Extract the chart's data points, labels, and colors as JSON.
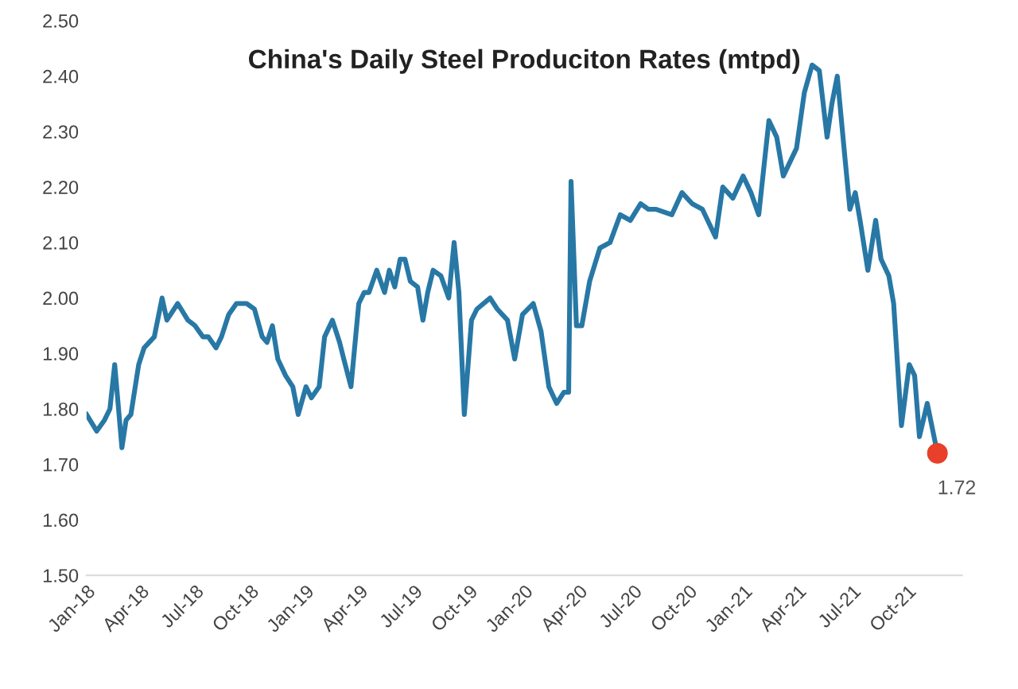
{
  "chart_data": {
    "type": "line",
    "title": "China's Daily Steel Produciton Rates (mtpd)",
    "xlim": [
      "2018-01-01",
      "2021-12-31"
    ],
    "xticks": [
      {
        "value": "2018-01-01",
        "label": "Jan-18"
      },
      {
        "value": "2018-04-01",
        "label": "Apr-18"
      },
      {
        "value": "2018-07-01",
        "label": "Jul-18"
      },
      {
        "value": "2018-10-01",
        "label": "Oct-18"
      },
      {
        "value": "2019-01-01",
        "label": "Jan-19"
      },
      {
        "value": "2019-04-01",
        "label": "Apr-19"
      },
      {
        "value": "2019-07-01",
        "label": "Jul-19"
      },
      {
        "value": "2019-10-01",
        "label": "Oct-19"
      },
      {
        "value": "2020-01-01",
        "label": "Jan-20"
      },
      {
        "value": "2020-04-01",
        "label": "Apr-20"
      },
      {
        "value": "2020-07-01",
        "label": "Jul-20"
      },
      {
        "value": "2020-10-01",
        "label": "Oct-20"
      },
      {
        "value": "2021-01-01",
        "label": "Jan-21"
      },
      {
        "value": "2021-04-01",
        "label": "Apr-21"
      },
      {
        "value": "2021-07-01",
        "label": "Jul-21"
      },
      {
        "value": "2021-10-01",
        "label": "Oct-21"
      }
    ],
    "ylim": [
      1.5,
      2.5
    ],
    "yticks": [
      {
        "value": 1.5,
        "label": "1.50"
      },
      {
        "value": 1.6,
        "label": "1.60"
      },
      {
        "value": 1.7,
        "label": "1.70"
      },
      {
        "value": 1.8,
        "label": "1.80"
      },
      {
        "value": 1.9,
        "label": "1.90"
      },
      {
        "value": 2.0,
        "label": "2.00"
      },
      {
        "value": 2.1,
        "label": "2.10"
      },
      {
        "value": 2.2,
        "label": "2.20"
      },
      {
        "value": 2.3,
        "label": "2.30"
      },
      {
        "value": 2.4,
        "label": "2.40"
      },
      {
        "value": 2.5,
        "label": "2.50"
      }
    ],
    "grid": false,
    "legend": false,
    "series": [
      {
        "color": "#2878a6",
        "marker": "none",
        "line_style": "solid",
        "x": [
          "2018-01-01",
          "2018-01-18",
          "2018-01-31",
          "2018-02-09",
          "2018-02-17",
          "2018-03-01",
          "2018-03-08",
          "2018-03-16",
          "2018-03-29",
          "2018-04-07",
          "2018-04-24",
          "2018-05-07",
          "2018-05-15",
          "2018-06-02",
          "2018-06-19",
          "2018-07-01",
          "2018-07-14",
          "2018-07-23",
          "2018-08-05",
          "2018-08-14",
          "2018-08-26",
          "2018-09-08",
          "2018-09-25",
          "2018-10-08",
          "2018-10-21",
          "2018-10-29",
          "2018-11-07",
          "2018-11-16",
          "2018-11-29",
          "2018-12-11",
          "2018-12-20",
          "2019-01-02",
          "2019-01-11",
          "2019-01-24",
          "2019-02-02",
          "2019-02-15",
          "2019-02-27",
          "2019-03-06",
          "2019-03-18",
          "2019-03-31",
          "2019-04-09",
          "2019-04-17",
          "2019-04-30",
          "2019-05-13",
          "2019-05-21",
          "2019-05-30",
          "2019-06-08",
          "2019-06-16",
          "2019-06-25",
          "2019-07-07",
          "2019-07-16",
          "2019-07-24",
          "2019-08-02",
          "2019-08-15",
          "2019-08-28",
          "2019-09-06",
          "2019-09-14",
          "2019-09-23",
          "2019-10-05",
          "2019-10-14",
          "2019-11-05",
          "2019-11-17",
          "2019-12-04",
          "2019-12-16",
          "2019-12-29",
          "2020-01-16",
          "2020-01-29",
          "2020-02-11",
          "2020-02-24",
          "2020-03-07",
          "2020-03-15",
          "2020-03-19",
          "2020-03-28",
          "2020-04-06",
          "2020-04-19",
          "2020-05-06",
          "2020-05-23",
          "2020-06-09",
          "2020-06-26",
          "2020-07-13",
          "2020-07-26",
          "2020-08-08",
          "2020-09-03",
          "2020-09-20",
          "2020-10-07",
          "2020-10-24",
          "2020-11-15",
          "2020-11-27",
          "2020-12-14",
          "2020-12-31",
          "2021-01-13",
          "2021-01-26",
          "2021-02-12",
          "2021-02-25",
          "2021-03-08",
          "2021-03-30",
          "2021-04-12",
          "2021-04-25",
          "2021-05-07",
          "2021-05-20",
          "2021-05-28",
          "2021-06-06",
          "2021-06-19",
          "2021-06-27",
          "2021-07-06",
          "2021-07-14",
          "2021-07-27",
          "2021-08-09",
          "2021-08-18",
          "2021-08-31",
          "2021-09-08",
          "2021-09-21",
          "2021-10-04",
          "2021-10-13",
          "2021-10-21",
          "2021-11-03",
          "2021-11-20"
        ],
        "values": [
          1.79,
          1.76,
          1.78,
          1.8,
          1.88,
          1.73,
          1.78,
          1.79,
          1.88,
          1.91,
          1.93,
          2.0,
          1.96,
          1.99,
          1.96,
          1.95,
          1.93,
          1.93,
          1.91,
          1.93,
          1.97,
          1.99,
          1.99,
          1.98,
          1.93,
          1.92,
          1.95,
          1.89,
          1.86,
          1.84,
          1.79,
          1.84,
          1.82,
          1.84,
          1.93,
          1.96,
          1.92,
          1.89,
          1.84,
          1.99,
          2.01,
          2.01,
          2.05,
          2.01,
          2.05,
          2.02,
          2.07,
          2.07,
          2.03,
          2.02,
          1.96,
          2.01,
          2.05,
          2.04,
          2.0,
          2.1,
          2.01,
          1.79,
          1.96,
          1.98,
          2.0,
          1.98,
          1.96,
          1.89,
          1.97,
          1.99,
          1.94,
          1.84,
          1.81,
          1.83,
          1.83,
          2.21,
          1.95,
          1.95,
          2.03,
          2.09,
          2.1,
          2.15,
          2.14,
          2.17,
          2.16,
          2.16,
          2.15,
          2.19,
          2.17,
          2.16,
          2.11,
          2.2,
          2.18,
          2.22,
          2.19,
          2.15,
          2.32,
          2.29,
          2.22,
          2.27,
          2.37,
          2.42,
          2.41,
          2.29,
          2.35,
          2.4,
          2.25,
          2.16,
          2.19,
          2.14,
          2.05,
          2.14,
          2.07,
          2.04,
          1.99,
          1.77,
          1.88,
          1.86,
          1.75,
          1.81,
          1.72
        ]
      },
      {
        "type": "scatter",
        "color": "#e8402a",
        "marker": "circle",
        "x": [
          "2021-11-20"
        ],
        "values": [
          1.72
        ],
        "value_labels": [
          "1.72"
        ]
      }
    ]
  }
}
